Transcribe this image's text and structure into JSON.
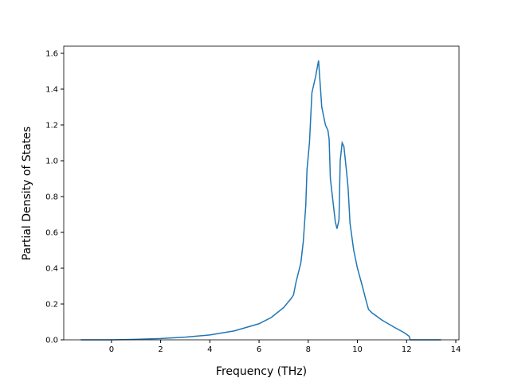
{
  "chart_data": {
    "type": "line",
    "xlabel": "Frequency (THz)",
    "ylabel": "Partial Density of States",
    "x": [
      -1.25,
      0,
      1,
      2,
      3,
      4,
      5,
      6,
      6.5,
      7,
      7.3,
      7.4,
      7.5,
      7.7,
      7.8,
      7.9,
      7.95,
      8.05,
      8.15,
      8.3,
      8.42,
      8.5,
      8.55,
      8.7,
      8.8,
      8.85,
      8.9,
      9.0,
      9.1,
      9.17,
      9.25,
      9.3,
      9.38,
      9.45,
      9.55,
      9.62,
      9.7,
      9.85,
      10.0,
      10.2,
      10.35,
      10.45,
      10.6,
      11,
      11.5,
      11.9,
      12.1,
      12.15,
      13.4
    ],
    "series": [
      {
        "name": "PDOS",
        "color": "#1f77b4",
        "values": [
          0,
          0,
          0.003,
          0.007,
          0.015,
          0.027,
          0.05,
          0.09,
          0.125,
          0.18,
          0.23,
          0.25,
          0.32,
          0.43,
          0.55,
          0.75,
          0.95,
          1.1,
          1.38,
          1.47,
          1.56,
          1.4,
          1.3,
          1.2,
          1.17,
          1.12,
          0.9,
          0.78,
          0.66,
          0.62,
          0.67,
          1.0,
          1.1,
          1.08,
          0.95,
          0.85,
          0.65,
          0.5,
          0.4,
          0.3,
          0.22,
          0.17,
          0.15,
          0.11,
          0.07,
          0.04,
          0.02,
          0,
          0
        ]
      }
    ],
    "xlim": [
      -1.94,
      14.13
    ],
    "ylim": [
      0,
      1.64
    ],
    "xticks": [
      0,
      2,
      4,
      6,
      8,
      10,
      12,
      14
    ],
    "yticks": [
      {
        "value": 0,
        "label": "0.0"
      },
      {
        "value": 0.2,
        "label": "0.2"
      },
      {
        "value": 0.4,
        "label": "0.4"
      },
      {
        "value": 0.6,
        "label": "0.6"
      },
      {
        "value": 0.8,
        "label": "0.8"
      },
      {
        "value": 1.0,
        "label": "1.0"
      },
      {
        "value": 1.2,
        "label": "1.2"
      },
      {
        "value": 1.4,
        "label": "1.4"
      },
      {
        "value": 1.6,
        "label": "1.6"
      }
    ]
  }
}
